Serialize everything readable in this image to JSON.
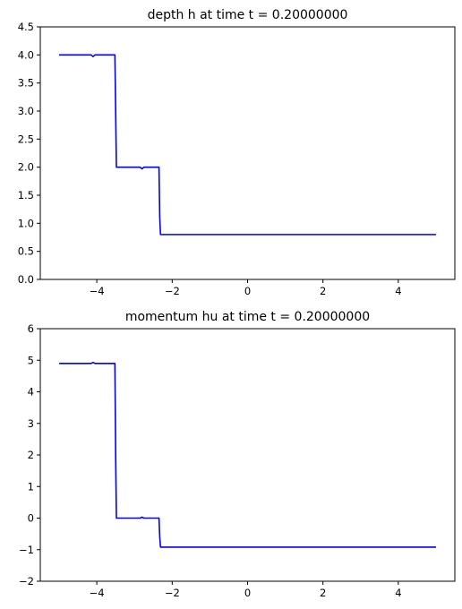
{
  "chart_data": [
    {
      "type": "line",
      "title": "depth h at time t =     0.20000000",
      "xlabel": "",
      "ylabel": "",
      "xlim": [
        -5.5,
        5.5
      ],
      "ylim": [
        0.0,
        4.5
      ],
      "xticks": [
        -4,
        -2,
        0,
        2,
        4
      ],
      "xtick_labels": [
        "−4",
        "−2",
        "0",
        "2",
        "4"
      ],
      "yticks": [
        0.0,
        0.5,
        1.0,
        1.5,
        2.0,
        2.5,
        3.0,
        3.5,
        4.0,
        4.5
      ],
      "ytick_labels": [
        "0.0",
        "0.5",
        "1.0",
        "1.5",
        "2.0",
        "2.5",
        "3.0",
        "3.5",
        "4.0",
        "4.5"
      ],
      "grid": false,
      "color": "#0000ff",
      "series": [
        {
          "x": [
            -5.0,
            -4.15,
            -4.1,
            -4.05,
            -3.52,
            -3.5,
            -3.48,
            -2.85,
            -2.8,
            -2.75,
            -2.35,
            -2.33,
            -2.31,
            5.0
          ],
          "y": [
            4.0,
            4.0,
            3.97,
            4.0,
            4.0,
            3.0,
            2.0,
            2.0,
            1.97,
            2.0,
            2.0,
            1.1,
            0.8,
            0.8
          ]
        }
      ]
    },
    {
      "type": "line",
      "title": "momentum hu at time t =     0.20000000",
      "xlabel": "",
      "ylabel": "",
      "xlim": [
        -5.5,
        5.5
      ],
      "ylim": [
        -2,
        6
      ],
      "xticks": [
        -4,
        -2,
        0,
        2,
        4
      ],
      "xtick_labels": [
        "−4",
        "−2",
        "0",
        "2",
        "4"
      ],
      "yticks": [
        -2,
        -1,
        0,
        1,
        2,
        3,
        4,
        5,
        6
      ],
      "ytick_labels": [
        "−2",
        "−1",
        "0",
        "1",
        "2",
        "3",
        "4",
        "5",
        "6"
      ],
      "grid": false,
      "color": "#0000ff",
      "series": [
        {
          "x": [
            -5.0,
            -4.15,
            -4.1,
            -4.05,
            -3.52,
            -3.5,
            -3.48,
            -2.85,
            -2.8,
            -2.75,
            -2.35,
            -2.33,
            -2.31,
            5.0
          ],
          "y": [
            4.9,
            4.9,
            4.93,
            4.9,
            4.9,
            2.0,
            0.0,
            0.0,
            0.03,
            0.0,
            0.0,
            -0.6,
            -0.92,
            -0.92
          ]
        }
      ]
    }
  ]
}
